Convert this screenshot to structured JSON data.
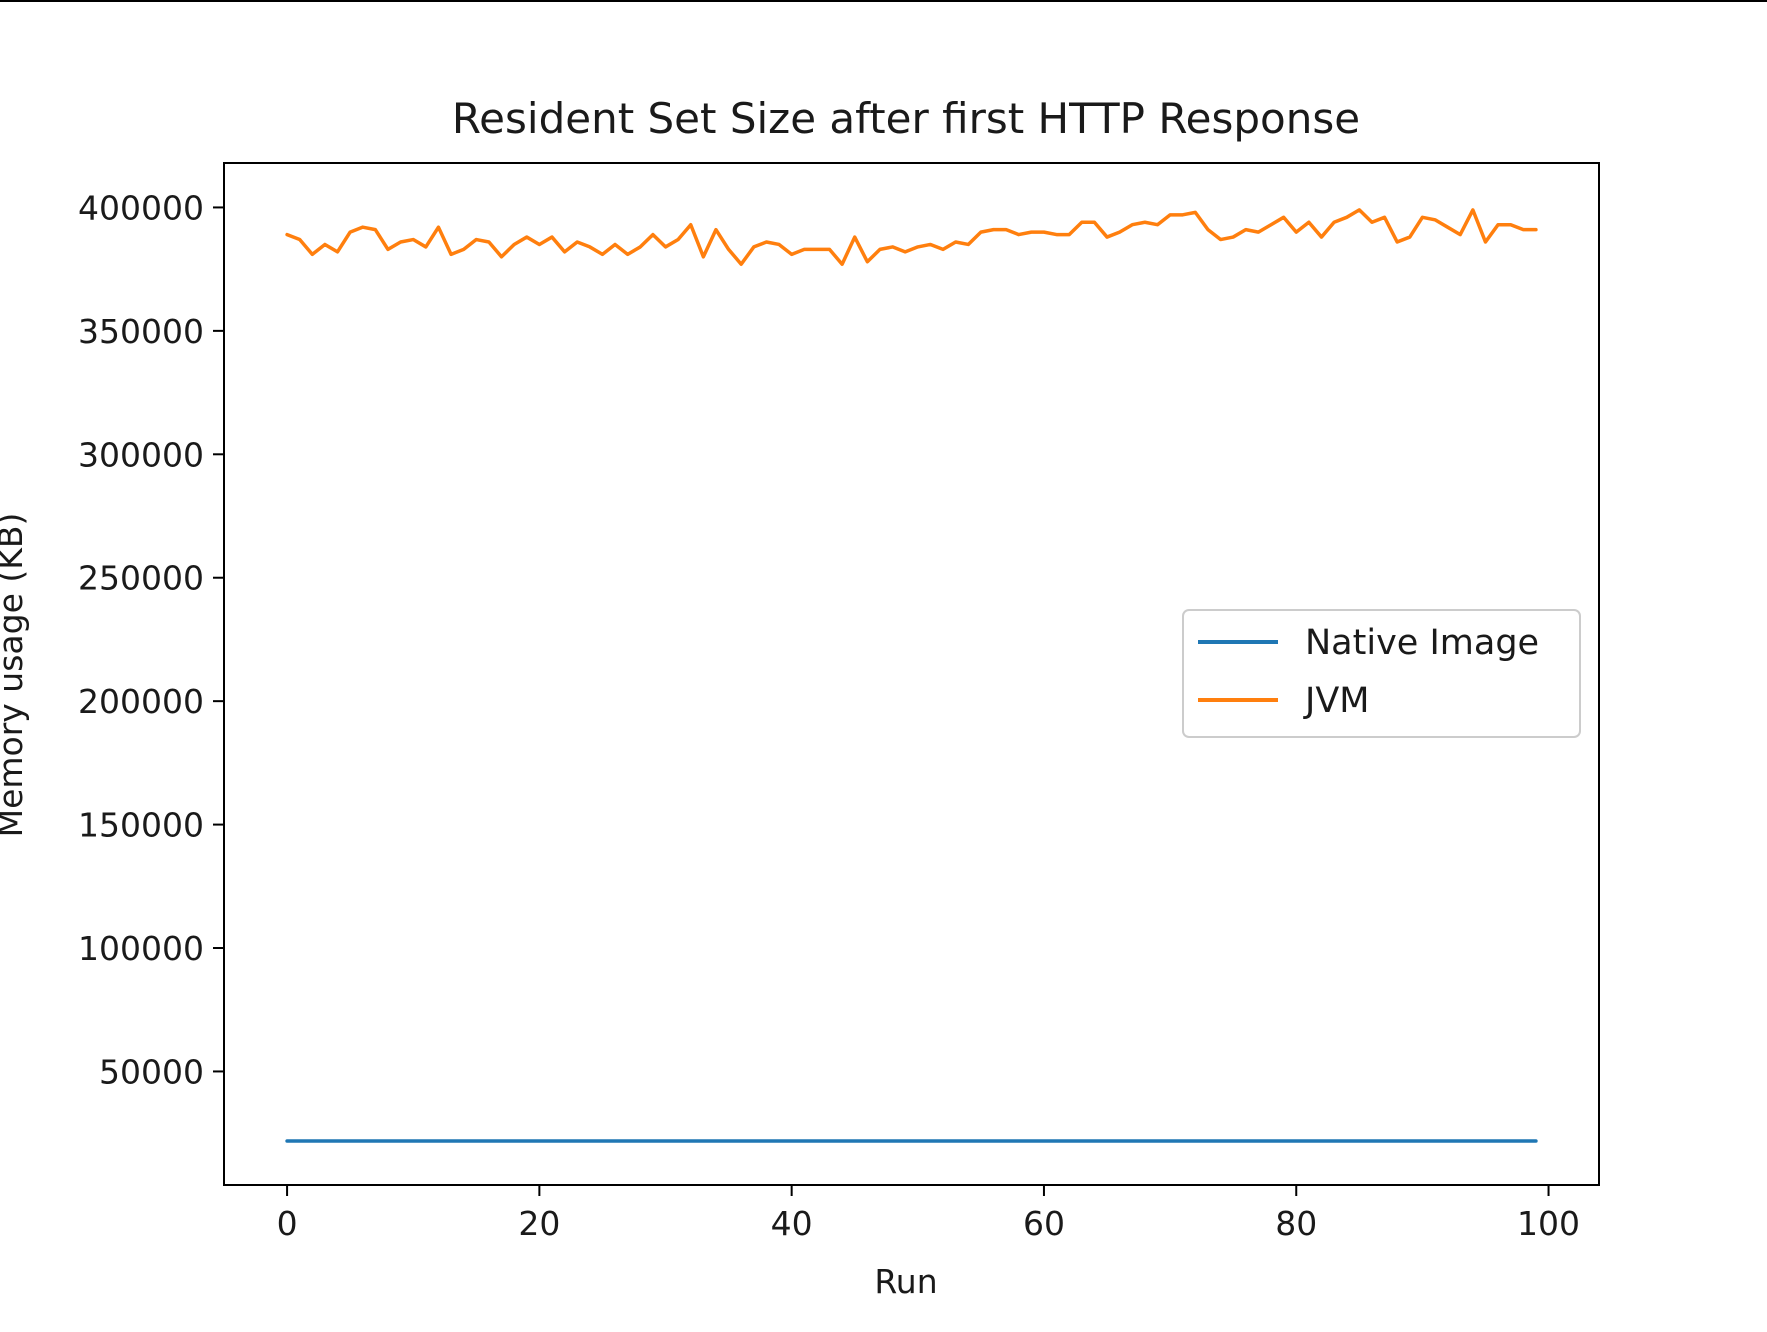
{
  "chart_data": {
    "type": "line",
    "title": "Resident Set Size after first HTTP Response",
    "xlabel": "Run",
    "ylabel": "Memory usage (KB)",
    "xlim": [
      -5,
      104
    ],
    "ylim": [
      4000,
      418000
    ],
    "xticks": [
      0,
      20,
      40,
      60,
      80,
      100
    ],
    "yticks": [
      50000,
      100000,
      150000,
      200000,
      250000,
      300000,
      350000,
      400000
    ],
    "grid": false,
    "legend": {
      "placement": "center-right"
    },
    "series": [
      {
        "name": "Native Image",
        "color": "#1f77b4",
        "values": [
          21800,
          21800,
          21800,
          21800,
          21800,
          21800,
          21800,
          21800,
          21800,
          21800,
          21800,
          21800,
          21800,
          21800,
          21800,
          21800,
          21800,
          21800,
          21800,
          21800,
          21800,
          21800,
          21800,
          21800,
          21800,
          21800,
          21800,
          21800,
          21800,
          21800,
          21800,
          21800,
          21800,
          21800,
          21800,
          21800,
          21800,
          21800,
          21800,
          21800,
          21800,
          21800,
          21800,
          21800,
          21800,
          21800,
          21800,
          21800,
          21800,
          21800,
          21800,
          21800,
          21800,
          21800,
          21800,
          21800,
          21800,
          21800,
          21800,
          21800,
          21800,
          21800,
          21800,
          21800,
          21800,
          21800,
          21800,
          21800,
          21800,
          21800,
          21800,
          21800,
          21800,
          21800,
          21800,
          21800,
          21800,
          21800,
          21800,
          21800,
          21800,
          21800,
          21800,
          21800,
          21800,
          21800,
          21800,
          21800,
          21800,
          21800,
          21800,
          21800,
          21800,
          21800,
          21800,
          21800,
          21800,
          21800,
          21800,
          21800
        ]
      },
      {
        "name": "JVM",
        "color": "#ff7f0e",
        "values": [
          389000,
          387000,
          381000,
          385000,
          382000,
          390000,
          392000,
          391000,
          383000,
          386000,
          387000,
          384000,
          392000,
          381000,
          383000,
          387000,
          386000,
          380000,
          385000,
          388000,
          385000,
          388000,
          382000,
          386000,
          384000,
          381000,
          385000,
          381000,
          384000,
          389000,
          384000,
          387000,
          393000,
          380000,
          391000,
          383000,
          377000,
          384000,
          386000,
          385000,
          381000,
          383000,
          383000,
          383000,
          377000,
          388000,
          378000,
          383000,
          384000,
          382000,
          384000,
          385000,
          383000,
          386000,
          385000,
          390000,
          391000,
          391000,
          389000,
          390000,
          390000,
          389000,
          389000,
          394000,
          394000,
          388000,
          390000,
          393000,
          394000,
          393000,
          397000,
          397000,
          398000,
          391000,
          387000,
          388000,
          391000,
          390000,
          393000,
          396000,
          390000,
          394000,
          388000,
          394000,
          396000,
          399000,
          394000,
          396000,
          386000,
          388000,
          396000,
          395000,
          392000,
          389000,
          399000,
          386000,
          393000,
          393000,
          391000,
          391000
        ]
      }
    ]
  }
}
